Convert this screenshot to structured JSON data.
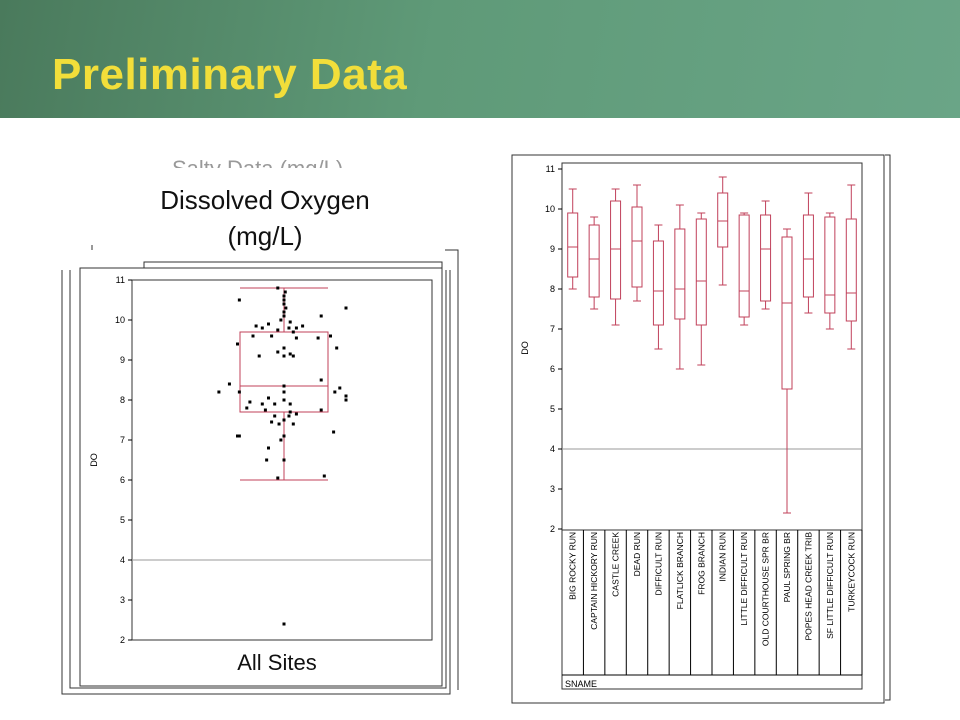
{
  "slide": {
    "title": "Preliminary Data",
    "chart_title_line1": "Dissolved Oxygen",
    "chart_title_line2": "(mg/L)",
    "left_caption": "All Sites",
    "ghost_text": "Salty Data (mg/L)"
  },
  "colors": {
    "banner": "#5f9a78",
    "title": "#f2de3a",
    "box": "#c0405a",
    "ref": "#999999"
  },
  "chart_data": [
    {
      "type": "box",
      "title": "Dissolved Oxygen (mg/L)",
      "xlabel": "All Sites",
      "ylabel": "DO",
      "ylim": [
        2,
        11
      ],
      "yticks": [
        "2",
        "3",
        "4",
        "5",
        "6",
        "7",
        "8",
        "9",
        "10",
        "11"
      ],
      "reference_line": 4,
      "box": {
        "min": 6.0,
        "q1": 7.7,
        "median": 8.35,
        "q3": 9.7,
        "max": 10.8
      },
      "outliers": [
        2.4
      ],
      "points": [
        {
          "x": -0.1,
          "y": 10.8
        },
        {
          "x": 0.02,
          "y": 10.7
        },
        {
          "x": 0.0,
          "y": 10.6
        },
        {
          "x": 0.0,
          "y": 10.5
        },
        {
          "x": -0.72,
          "y": 10.5
        },
        {
          "x": 0.0,
          "y": 10.4
        },
        {
          "x": 0.03,
          "y": 10.3
        },
        {
          "x": 1.0,
          "y": 10.3
        },
        {
          "x": 0.0,
          "y": 10.2
        },
        {
          "x": 0.0,
          "y": 10.1
        },
        {
          "x": 0.6,
          "y": 10.1
        },
        {
          "x": -0.05,
          "y": 10.0
        },
        {
          "x": 0.1,
          "y": 9.95
        },
        {
          "x": -0.25,
          "y": 9.9
        },
        {
          "x": -0.45,
          "y": 9.85
        },
        {
          "x": -0.35,
          "y": 9.8
        },
        {
          "x": 0.08,
          "y": 9.8
        },
        {
          "x": 0.2,
          "y": 9.8
        },
        {
          "x": -0.1,
          "y": 9.75
        },
        {
          "x": 0.15,
          "y": 9.7
        },
        {
          "x": 0.3,
          "y": 9.85
        },
        {
          "x": -0.5,
          "y": 9.6
        },
        {
          "x": -0.2,
          "y": 9.6
        },
        {
          "x": 0.2,
          "y": 9.55
        },
        {
          "x": 0.55,
          "y": 9.55
        },
        {
          "x": 0.75,
          "y": 9.6
        },
        {
          "x": -0.75,
          "y": 9.4
        },
        {
          "x": 0.0,
          "y": 9.3
        },
        {
          "x": 0.85,
          "y": 9.3
        },
        {
          "x": -0.1,
          "y": 9.2
        },
        {
          "x": 0.1,
          "y": 9.15
        },
        {
          "x": -0.4,
          "y": 9.1
        },
        {
          "x": 0.0,
          "y": 9.1
        },
        {
          "x": 0.15,
          "y": 9.1
        },
        {
          "x": 0.6,
          "y": 8.5
        },
        {
          "x": -0.88,
          "y": 8.4
        },
        {
          "x": 0.0,
          "y": 8.35
        },
        {
          "x": 0.9,
          "y": 8.3
        },
        {
          "x": -1.05,
          "y": 8.2
        },
        {
          "x": -0.72,
          "y": 8.2
        },
        {
          "x": 0.0,
          "y": 8.2
        },
        {
          "x": 0.82,
          "y": 8.2
        },
        {
          "x": 1.0,
          "y": 8.1
        },
        {
          "x": -0.25,
          "y": 8.05
        },
        {
          "x": 0.0,
          "y": 8.0
        },
        {
          "x": 1.0,
          "y": 8.0
        },
        {
          "x": -0.55,
          "y": 7.95
        },
        {
          "x": -0.35,
          "y": 7.9
        },
        {
          "x": -0.15,
          "y": 7.9
        },
        {
          "x": 0.1,
          "y": 7.9
        },
        {
          "x": -0.6,
          "y": 7.8
        },
        {
          "x": -0.3,
          "y": 7.75
        },
        {
          "x": 0.1,
          "y": 7.7
        },
        {
          "x": 0.6,
          "y": 7.75
        },
        {
          "x": -0.15,
          "y": 7.6
        },
        {
          "x": 0.08,
          "y": 7.6
        },
        {
          "x": 0.2,
          "y": 7.65
        },
        {
          "x": -0.2,
          "y": 7.45
        },
        {
          "x": 0.0,
          "y": 7.5
        },
        {
          "x": -0.08,
          "y": 7.4
        },
        {
          "x": 0.15,
          "y": 7.4
        },
        {
          "x": -0.75,
          "y": 7.1
        },
        {
          "x": -0.72,
          "y": 7.1
        },
        {
          "x": 0.0,
          "y": 7.1
        },
        {
          "x": 0.8,
          "y": 7.2
        },
        {
          "x": -0.05,
          "y": 7.0
        },
        {
          "x": -0.25,
          "y": 6.8
        },
        {
          "x": 0.0,
          "y": 6.5
        },
        {
          "x": -0.28,
          "y": 6.5
        },
        {
          "x": 0.65,
          "y": 6.1
        },
        {
          "x": -0.1,
          "y": 6.05
        },
        {
          "x": 0.0,
          "y": 2.4
        }
      ]
    },
    {
      "type": "box",
      "ylabel": "DO",
      "xlabel": "SNAME",
      "ylim": [
        2,
        11
      ],
      "yticks": [
        "2",
        "3",
        "4",
        "5",
        "6",
        "7",
        "8",
        "9",
        "10",
        "11"
      ],
      "reference_line": 4,
      "categories": [
        "BIG ROCKY RUN",
        "CAPTAIN HICKORY RUN",
        "CASTLE CREEK",
        "DEAD RUN",
        "DIFFICULT RUN",
        "FLATLICK BRANCH",
        "FROG BRANCH",
        "INDIAN RUN",
        "LITTLE DIFFICULT RUN",
        "OLD COURTHOUSE SPR BR",
        "PAUL SPRING BR",
        "POPES HEAD CREEK TRIB",
        "SF LITTLE DIFFICULT RUN",
        "TURKEYCOCK RUN"
      ],
      "boxes": [
        {
          "min": 8.0,
          "q1": 8.3,
          "median": 9.05,
          "q3": 9.9,
          "max": 10.5
        },
        {
          "min": 7.5,
          "q1": 7.8,
          "median": 8.75,
          "q3": 9.6,
          "max": 9.8
        },
        {
          "min": 7.1,
          "q1": 7.75,
          "median": 9.0,
          "q3": 10.2,
          "max": 10.5
        },
        {
          "min": 7.7,
          "q1": 8.05,
          "median": 9.2,
          "q3": 10.05,
          "max": 10.6
        },
        {
          "min": 6.5,
          "q1": 7.1,
          "median": 7.95,
          "q3": 9.2,
          "max": 9.6
        },
        {
          "min": 6.0,
          "q1": 7.25,
          "median": 8.0,
          "q3": 9.5,
          "max": 10.1
        },
        {
          "min": 6.1,
          "q1": 7.1,
          "median": 8.2,
          "q3": 9.75,
          "max": 9.9
        },
        {
          "min": 8.1,
          "q1": 9.05,
          "median": 9.7,
          "q3": 10.4,
          "max": 10.8
        },
        {
          "min": 7.1,
          "q1": 7.3,
          "median": 7.95,
          "q3": 9.85,
          "max": 9.9
        },
        {
          "min": 7.5,
          "q1": 7.7,
          "median": 9.0,
          "q3": 9.85,
          "max": 10.2
        },
        {
          "min": 2.4,
          "q1": 5.5,
          "median": 7.65,
          "q3": 9.3,
          "max": 9.5
        },
        {
          "min": 7.4,
          "q1": 7.8,
          "median": 8.75,
          "q3": 9.85,
          "max": 10.4
        },
        {
          "min": 7.0,
          "q1": 7.4,
          "median": 7.85,
          "q3": 9.8,
          "max": 9.9
        },
        {
          "min": 6.5,
          "q1": 7.2,
          "median": 7.9,
          "q3": 9.75,
          "max": 10.6
        }
      ]
    }
  ]
}
